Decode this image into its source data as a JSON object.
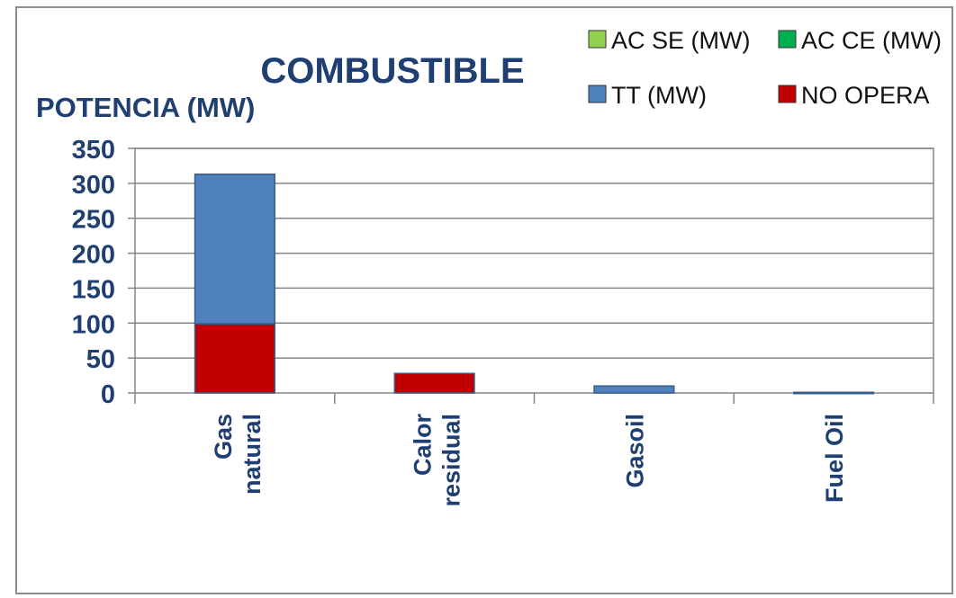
{
  "chart_data": {
    "type": "bar",
    "stacked": true,
    "title": "COMBUSTIBLE",
    "ylabel": "POTENCIA (MW)",
    "xlabel": "",
    "categories": [
      "Gas natural",
      "Calor residual",
      "Gasoil",
      "Fuel Oil"
    ],
    "series": [
      {
        "name": "NO OPERA",
        "color": "#C00000",
        "values": [
          99,
          28,
          0,
          0
        ]
      },
      {
        "name": "TT (MW)",
        "color": "#4F81BD",
        "values": [
          214,
          0,
          10,
          1
        ]
      },
      {
        "name": "AC SE (MW)",
        "color": "#92D050",
        "values": [
          0,
          0,
          0,
          0
        ]
      },
      {
        "name": "AC CE (MW)",
        "color": "#00B050",
        "values": [
          0,
          0,
          0,
          0
        ]
      }
    ],
    "legend_order": [
      "AC SE (MW)",
      "AC CE (MW)",
      "TT (MW)",
      "NO OPERA"
    ],
    "ylim": [
      0,
      350
    ],
    "yticks": [
      0,
      50,
      100,
      150,
      200,
      250,
      300,
      350
    ],
    "grid": true,
    "legend_position": "top-right"
  }
}
